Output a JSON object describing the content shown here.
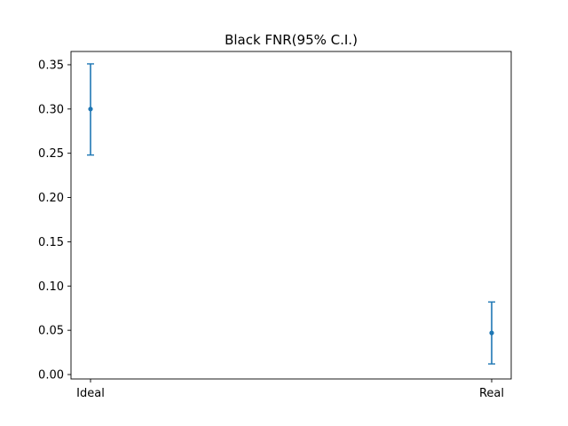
{
  "chart_data": {
    "type": "errorbar",
    "title": "Black FNR(95% C.I.)",
    "xlabel": "",
    "ylabel": "",
    "categories": [
      "Ideal",
      "Real"
    ],
    "series": [
      {
        "points": [
          {
            "x": "Ideal",
            "y": 0.3,
            "lower": 0.248,
            "upper": 0.351
          },
          {
            "x": "Real",
            "y": 0.047,
            "lower": 0.012,
            "upper": 0.082
          }
        ],
        "color": "#1f77b4"
      }
    ],
    "ylim": [
      -0.005,
      0.365
    ],
    "yticks": [
      0.0,
      0.05,
      0.1,
      0.15,
      0.2,
      0.25,
      0.3,
      0.35
    ],
    "ytick_labels": [
      "0.00",
      "0.05",
      "0.10",
      "0.15",
      "0.20",
      "0.25",
      "0.30",
      "0.35"
    ],
    "grid": false,
    "legend": "none"
  }
}
